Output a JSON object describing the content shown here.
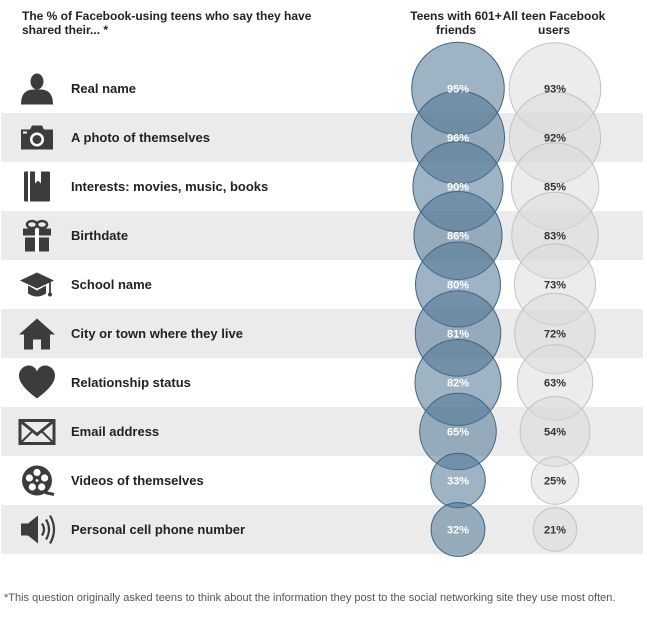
{
  "chart_data": {
    "type": "bubble",
    "title": "The % of Facebook-using teens who say they have shared their... *",
    "value_suffix": "%",
    "series": [
      {
        "name": "Teens with 601+ friends",
        "color": "#4f7593",
        "values": [
          95,
          96,
          90,
          86,
          80,
          81,
          82,
          65,
          33,
          32
        ]
      },
      {
        "name": "All teen Facebook users",
        "color": "#d9d9d9",
        "values": [
          93,
          92,
          85,
          83,
          73,
          72,
          63,
          54,
          25,
          21
        ]
      }
    ],
    "categories": [
      "Real name",
      "A photo of themselves",
      "Interests: movies, music, books",
      "Birthdate",
      "School name",
      "City or town where they live",
      "Relationship status",
      "Email address",
      "Videos of themselves",
      "Personal cell phone number"
    ],
    "icons": [
      "person-icon",
      "camera-icon",
      "book-icon",
      "gift-icon",
      "graduation-cap-icon",
      "house-icon",
      "heart-icon",
      "envelope-icon",
      "film-reel-icon",
      "speaker-icon"
    ]
  },
  "header": {
    "col1": "Teens with 601+ friends",
    "col2": "All teen Facebook users"
  },
  "footnote": "*This question originally asked teens to think about the information they post to the social networking site they use most often."
}
